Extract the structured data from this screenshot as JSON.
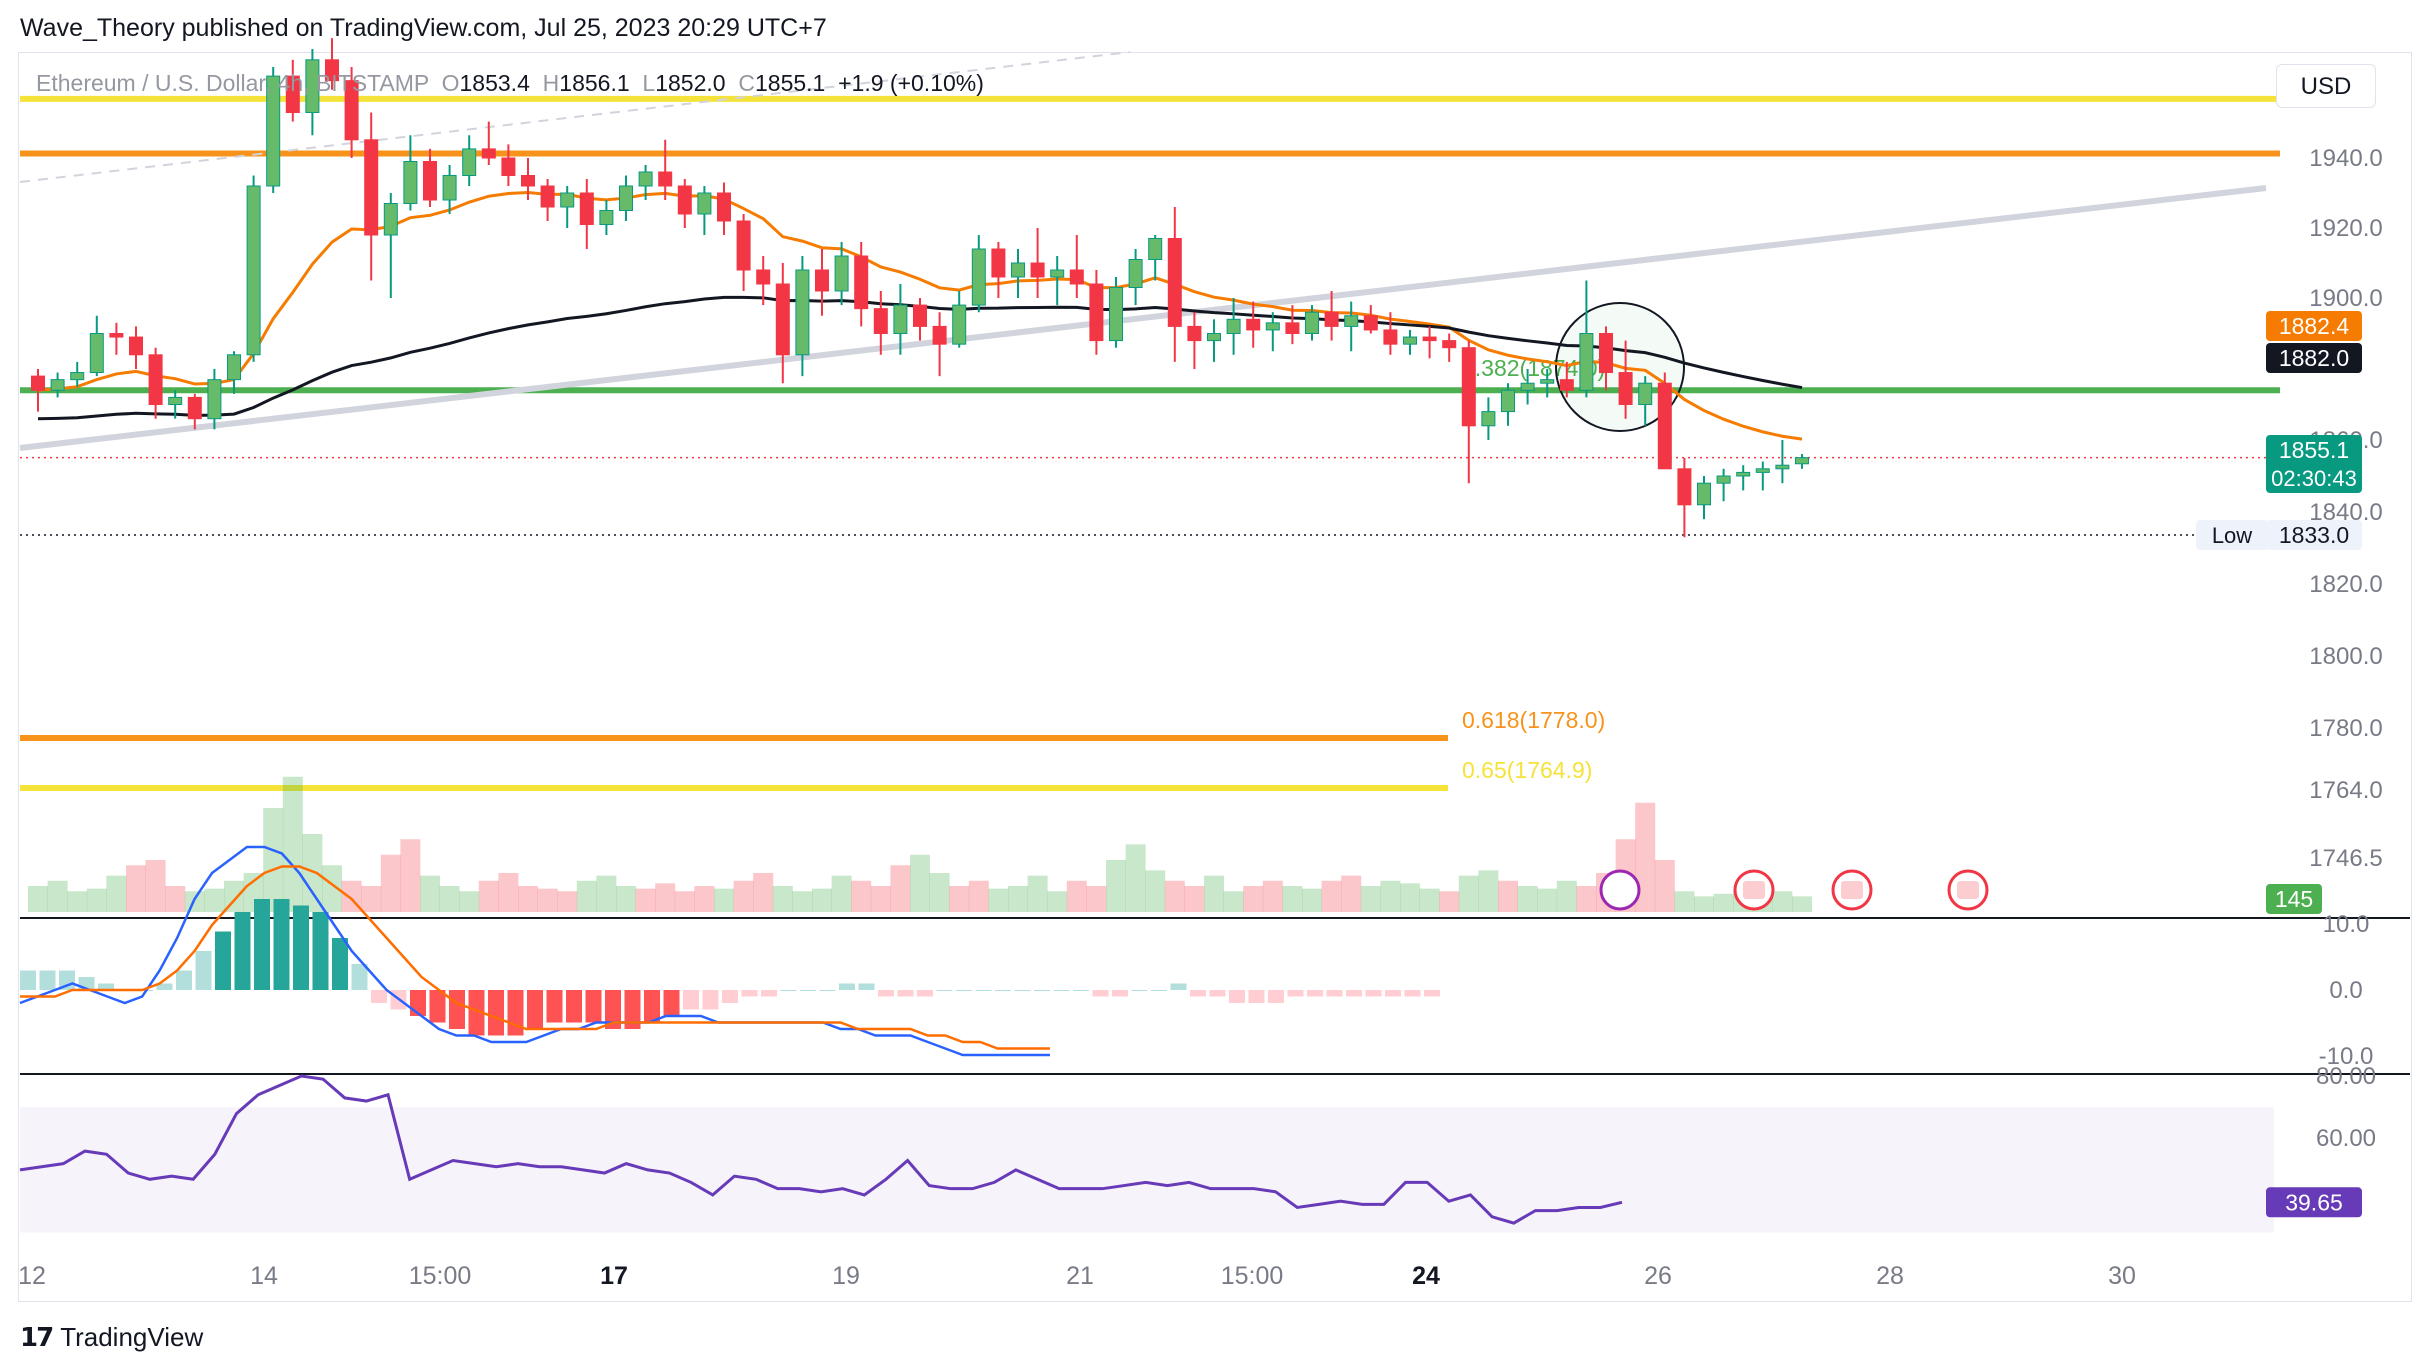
{
  "header": {
    "published_by": "Wave_Theory published on TradingView.com, Jul 25, 2023 20:29 UTC+7"
  },
  "legend": {
    "symbol": "Ethereum / U.S. Dollar, 4h, BITSTAMP",
    "o_label": "O",
    "o_value": "1853.4",
    "h_label": "H",
    "h_value": "1856.1",
    "l_label": "L",
    "l_value": "1852.0",
    "c_label": "C",
    "c_value": "1855.1",
    "change": "+1.9 (+0.10%)"
  },
  "currency": "USD",
  "footer": {
    "brand": "TradingView"
  },
  "colors": {
    "up": "#089981",
    "up_fill": "#66bb6a",
    "down": "#f23645",
    "ema_orange": "#f57c00",
    "ma_black": "#131722",
    "support_green": "#4caf50",
    "fib_orange": "#f7931a",
    "fib_yellow": "#f5e33a",
    "rsi": "#673ab7",
    "macd_line": "#2962ff",
    "signal_line": "#ff6d00"
  },
  "chart_data": {
    "type": "candlestick",
    "symbol": "Ethereum / U.S. Dollar",
    "interval": "4h",
    "exchange": "BITSTAMP",
    "price_range": [
      1740,
      1960
    ],
    "x_tick_labels": [
      "12",
      "14",
      "15:00",
      "17",
      "19",
      "21",
      "15:00",
      "24",
      "26",
      "28",
      "30"
    ],
    "y_tick_labels": [
      "1940.0",
      "1920.0",
      "1900.0",
      "1860.0",
      "1840.0",
      "1820.0",
      "1800.0",
      "1780.0",
      "1764.0",
      "1746.5"
    ],
    "candles_ohlc": [
      [
        1878,
        1880,
        1868,
        1874
      ],
      [
        1874,
        1879,
        1872,
        1877
      ],
      [
        1877,
        1882,
        1875,
        1879
      ],
      [
        1879,
        1895,
        1878,
        1890
      ],
      [
        1890,
        1893,
        1884,
        1889
      ],
      [
        1889,
        1892,
        1880,
        1884
      ],
      [
        1884,
        1886,
        1866,
        1870
      ],
      [
        1870,
        1874,
        1866,
        1872
      ],
      [
        1872,
        1873,
        1863,
        1866
      ],
      [
        1866,
        1880,
        1863,
        1877
      ],
      [
        1877,
        1885,
        1873,
        1884
      ],
      [
        1884,
        1935,
        1882,
        1932
      ],
      [
        1932,
        1960,
        1930,
        1958
      ],
      [
        1958,
        1962,
        1948,
        1950
      ],
      [
        1950,
        1965,
        1945,
        1962
      ],
      [
        1962,
        1968,
        1955,
        1957
      ],
      [
        1957,
        1960,
        1940,
        1944
      ],
      [
        1944,
        1950,
        1905,
        1918
      ],
      [
        1918,
        1930,
        1900,
        1927
      ],
      [
        1927,
        1945,
        1925,
        1939
      ],
      [
        1939,
        1942,
        1926,
        1928
      ],
      [
        1928,
        1938,
        1924,
        1935
      ],
      [
        1935,
        1945,
        1932,
        1942
      ],
      [
        1942,
        1948,
        1938,
        1940
      ],
      [
        1940,
        1943,
        1932,
        1935
      ],
      [
        1935,
        1940,
        1928,
        1932
      ],
      [
        1932,
        1934,
        1922,
        1926
      ],
      [
        1926,
        1932,
        1920,
        1930
      ],
      [
        1930,
        1934,
        1914,
        1921
      ],
      [
        1921,
        1928,
        1918,
        1925
      ],
      [
        1925,
        1935,
        1922,
        1932
      ],
      [
        1932,
        1938,
        1928,
        1936
      ],
      [
        1936,
        1944,
        1928,
        1932
      ],
      [
        1932,
        1934,
        1920,
        1924
      ],
      [
        1924,
        1932,
        1918,
        1930
      ],
      [
        1930,
        1933,
        1918,
        1922
      ],
      [
        1922,
        1924,
        1902,
        1908
      ],
      [
        1908,
        1912,
        1898,
        1904
      ],
      [
        1904,
        1910,
        1876,
        1884
      ],
      [
        1884,
        1912,
        1878,
        1908
      ],
      [
        1908,
        1914,
        1895,
        1902
      ],
      [
        1902,
        1916,
        1898,
        1912
      ],
      [
        1912,
        1916,
        1892,
        1897
      ],
      [
        1897,
        1902,
        1884,
        1890
      ],
      [
        1890,
        1904,
        1884,
        1898
      ],
      [
        1898,
        1900,
        1888,
        1892
      ],
      [
        1892,
        1896,
        1878,
        1887
      ],
      [
        1887,
        1902,
        1886,
        1898
      ],
      [
        1898,
        1918,
        1896,
        1914
      ],
      [
        1914,
        1916,
        1900,
        1906
      ],
      [
        1906,
        1914,
        1900,
        1910
      ],
      [
        1910,
        1920,
        1900,
        1906
      ],
      [
        1906,
        1912,
        1898,
        1908
      ],
      [
        1908,
        1918,
        1900,
        1904
      ],
      [
        1904,
        1908,
        1884,
        1888
      ],
      [
        1888,
        1906,
        1886,
        1903
      ],
      [
        1903,
        1914,
        1898,
        1911
      ],
      [
        1911,
        1918,
        1905,
        1917
      ],
      [
        1917,
        1926,
        1882,
        1892
      ],
      [
        1892,
        1896,
        1880,
        1888
      ],
      [
        1888,
        1894,
        1882,
        1890
      ],
      [
        1890,
        1900,
        1884,
        1894
      ],
      [
        1894,
        1899,
        1886,
        1891
      ],
      [
        1891,
        1896,
        1885,
        1893
      ],
      [
        1893,
        1898,
        1887,
        1890
      ],
      [
        1890,
        1898,
        1888,
        1896
      ],
      [
        1896,
        1902,
        1888,
        1892
      ],
      [
        1892,
        1899,
        1885,
        1895
      ],
      [
        1895,
        1898,
        1890,
        1891
      ],
      [
        1891,
        1896,
        1884,
        1887
      ],
      [
        1887,
        1891,
        1884,
        1889
      ],
      [
        1889,
        1892,
        1883,
        1888
      ],
      [
        1888,
        1890,
        1882,
        1886
      ],
      [
        1886,
        1888,
        1848,
        1864
      ],
      [
        1864,
        1872,
        1860,
        1868
      ],
      [
        1868,
        1876,
        1864,
        1874
      ],
      [
        1874,
        1880,
        1870,
        1876
      ],
      [
        1876,
        1880,
        1872,
        1877
      ],
      [
        1877,
        1882,
        1872,
        1874
      ],
      [
        1874,
        1905,
        1872,
        1890
      ],
      [
        1890,
        1892,
        1874,
        1879
      ],
      [
        1879,
        1888,
        1866,
        1870
      ],
      [
        1870,
        1878,
        1864,
        1876
      ],
      [
        1876,
        1879,
        1852,
        1852
      ],
      [
        1852,
        1855,
        1833,
        1842
      ],
      [
        1842,
        1850,
        1838,
        1848
      ],
      [
        1848,
        1852,
        1843,
        1850
      ],
      [
        1850,
        1853,
        1846,
        1851
      ],
      [
        1851,
        1854,
        1846,
        1852
      ],
      [
        1852,
        1860,
        1848,
        1853
      ],
      [
        1853.4,
        1856.1,
        1852.0,
        1855.1
      ]
    ],
    "indicators": {
      "ema_orange_last": 1882.4,
      "ma_black_last": 1882.0
    },
    "horizontal_levels": [
      {
        "price": 1953,
        "color": "yellow"
      },
      {
        "price": 1941,
        "color": "orange"
      },
      {
        "price": 1874,
        "color": "green"
      }
    ],
    "fib_levels": [
      {
        "label": "0.382(1874.0)",
        "ratio": 0.382,
        "price": 1874.0
      },
      {
        "label": "0.618(1778.0)",
        "ratio": 0.618,
        "price": 1778.0
      },
      {
        "label": "0.65(1764.9)",
        "ratio": 0.65,
        "price": 1764.9
      }
    ],
    "price_badges": [
      {
        "value": "1882.4",
        "bg": "#f57c00",
        "fg": "#ffffff"
      },
      {
        "value": "1882.0",
        "bg": "#131722",
        "fg": "#ffffff"
      },
      {
        "value": "1855.1",
        "sub": "02:30:43",
        "bg": "#089981",
        "fg": "#ffffff"
      }
    ],
    "low_marker": {
      "label": "Low",
      "value": "1833.0"
    },
    "volume_badge": "145",
    "volume_profile": [
      10,
      12,
      8,
      9,
      14,
      18,
      20,
      10,
      8,
      9,
      12,
      15,
      40,
      52,
      30,
      18,
      12,
      10,
      22,
      28,
      14,
      10,
      8,
      12,
      15,
      10,
      9,
      8,
      12,
      14,
      10,
      9,
      11,
      8,
      10,
      9,
      12,
      15,
      10,
      8,
      9,
      14,
      12,
      10,
      18,
      22,
      15,
      10,
      12,
      9,
      10,
      14,
      8,
      12,
      10,
      20,
      26,
      16,
      12,
      10,
      14,
      8,
      10,
      12,
      10,
      9,
      12,
      14,
      10,
      12,
      11,
      9,
      8,
      14,
      16,
      12,
      10,
      9,
      12,
      10,
      15,
      28,
      42,
      20,
      8,
      6,
      7,
      8,
      9,
      8,
      6
    ],
    "macd_panel": {
      "y_tick_labels": [
        "10.0",
        "0.0",
        "-10.0"
      ],
      "histogram": [
        3,
        3,
        3,
        2,
        1,
        0,
        0,
        1,
        3,
        6,
        9,
        12,
        14,
        14,
        13,
        12,
        8,
        4,
        -2,
        -3,
        -4,
        -5,
        -6,
        -7,
        -7,
        -7,
        -6,
        -5,
        -5,
        -5,
        -6,
        -6,
        -5,
        -4,
        -3,
        -3,
        -2,
        -1,
        -1,
        0,
        0,
        0,
        1,
        1,
        -1,
        -1,
        -1,
        0,
        0,
        0,
        0,
        0,
        0,
        0,
        0,
        -1,
        -1,
        0,
        0,
        1,
        -1,
        -1,
        -2,
        -2,
        -2,
        -1,
        -1,
        -1,
        -1,
        -1,
        -1,
        -1,
        -1
      ],
      "macd_line": [
        -2,
        -1,
        0,
        1,
        0,
        -1,
        -2,
        -1,
        3,
        8,
        14,
        18,
        20,
        22,
        22,
        21,
        18,
        14,
        10,
        6,
        3,
        0,
        -2,
        -4,
        -6,
        -7,
        -7,
        -8,
        -8,
        -8,
        -7,
        -6,
        -6,
        -5,
        -5,
        -5,
        -5,
        -4,
        -4,
        -4,
        -5,
        -5,
        -5,
        -5,
        -5,
        -5,
        -5,
        -6,
        -6,
        -7,
        -7,
        -7,
        -8,
        -9,
        -10,
        -10,
        -10,
        -10,
        -10,
        -10
      ],
      "signal_line": [
        -1,
        -1,
        -1,
        0,
        0,
        0,
        0,
        0,
        1,
        3,
        6,
        10,
        13,
        16,
        18,
        19,
        19,
        18,
        16,
        14,
        11,
        8,
        5,
        2,
        0,
        -2,
        -3,
        -4,
        -5,
        -6,
        -6,
        -6,
        -6,
        -6,
        -5,
        -5,
        -5,
        -5,
        -5,
        -5,
        -5,
        -5,
        -5,
        -5,
        -5,
        -5,
        -5,
        -5,
        -6,
        -6,
        -6,
        -6,
        -7,
        -7,
        -8,
        -8,
        -9,
        -9,
        -9,
        -9
      ]
    },
    "rsi_panel": {
      "y_tick_labels": [
        "80.00",
        "60.00"
      ],
      "last_value": "39.65",
      "band": [
        30,
        70
      ],
      "values": [
        50,
        51,
        52,
        56,
        55,
        49,
        47,
        48,
        47,
        55,
        68,
        74,
        77,
        80,
        79,
        73,
        72,
        74,
        47,
        50,
        53,
        52,
        51,
        52,
        51,
        51,
        50,
        49,
        52,
        50,
        49,
        46,
        42,
        48,
        47,
        44,
        44,
        43,
        44,
        42,
        47,
        53,
        45,
        44,
        44,
        46,
        50,
        47,
        44,
        44,
        44,
        45,
        46,
        45,
        46,
        44,
        44,
        44,
        43,
        38,
        39,
        40,
        39,
        39,
        46,
        46,
        40,
        42,
        35,
        33,
        37,
        37,
        38,
        38,
        39.65
      ]
    }
  }
}
